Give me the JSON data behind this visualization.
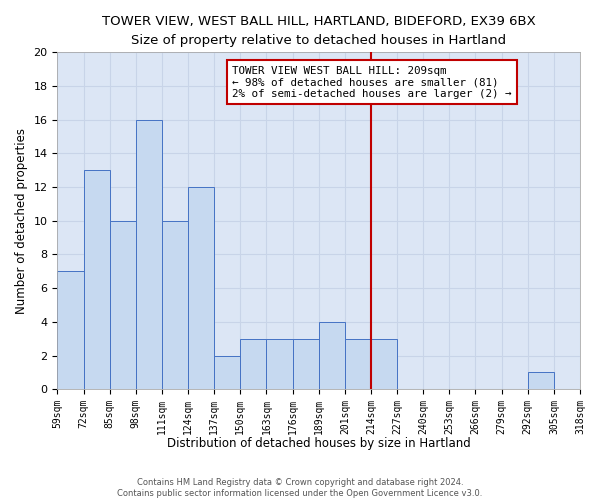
{
  "title": "TOWER VIEW, WEST BALL HILL, HARTLAND, BIDEFORD, EX39 6BX",
  "subtitle": "Size of property relative to detached houses in Hartland",
  "xlabel": "Distribution of detached houses by size in Hartland",
  "ylabel": "Number of detached properties",
  "bar_values": [
    7,
    13,
    10,
    16,
    10,
    12,
    2,
    3,
    3,
    3,
    4,
    3,
    3,
    0,
    0,
    0,
    0,
    0,
    1,
    0
  ],
  "bar_labels": [
    "59sqm",
    "72sqm",
    "85sqm",
    "98sqm",
    "111sqm",
    "124sqm",
    "137sqm",
    "150sqm",
    "163sqm",
    "176sqm",
    "189sqm",
    "201sqm",
    "214sqm",
    "227sqm",
    "240sqm",
    "253sqm",
    "266sqm",
    "279sqm",
    "292sqm",
    "305sqm",
    "318sqm"
  ],
  "bar_color": "#c6d9f0",
  "bar_edge_color": "#4472c4",
  "vline_x": 12.0,
  "vline_color": "#c00000",
  "annotation_text": "TOWER VIEW WEST BALL HILL: 209sqm\n← 98% of detached houses are smaller (81)\n2% of semi-detached houses are larger (2) →",
  "annotation_box_color": "#c00000",
  "ylim": [
    0,
    20
  ],
  "yticks": [
    0,
    2,
    4,
    6,
    8,
    10,
    12,
    14,
    16,
    18,
    20
  ],
  "grid_color": "#c8d4e8",
  "background_color": "#dce6f5",
  "footer_text": "Contains HM Land Registry data © Crown copyright and database right 2024.\nContains public sector information licensed under the Open Government Licence v3.0.",
  "title_fontsize": 9.5,
  "subtitle_fontsize": 9,
  "xlabel_fontsize": 8.5,
  "ylabel_fontsize": 8.5,
  "annotation_fontsize": 7.8,
  "tick_fontsize": 7
}
